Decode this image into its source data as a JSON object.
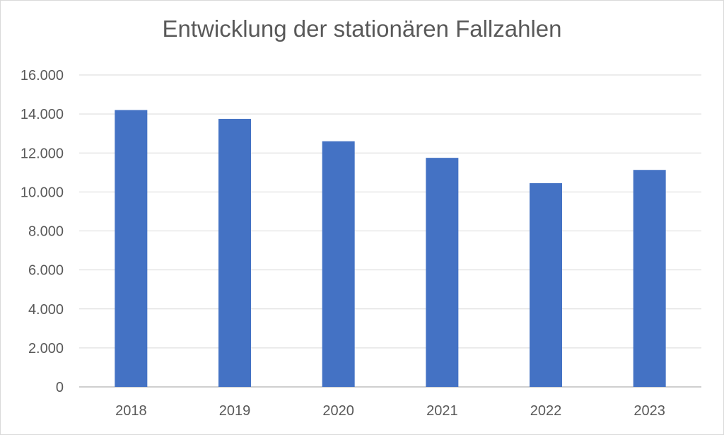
{
  "chart_data": {
    "type": "bar",
    "title": "Entwicklung der stationären Fallzahlen",
    "xlabel": "",
    "ylabel": "",
    "categories": [
      "2018",
      "2019",
      "2020",
      "2021",
      "2022",
      "2023"
    ],
    "series": [
      {
        "values": [
          14200,
          13750,
          12600,
          11750,
          10450,
          11130
        ]
      }
    ],
    "ylim": [
      0,
      16000
    ],
    "yticks": [
      0,
      2000,
      4000,
      6000,
      8000,
      10000,
      12000,
      14000,
      16000
    ],
    "ytick_labels": [
      "0",
      "2.000",
      "4.000",
      "6.000",
      "8.000",
      "10.000",
      "12.000",
      "14.000",
      "16.000"
    ],
    "grid": true,
    "legend": "none",
    "bar_color": "#4472c4",
    "grid_color": "#d9d9d9",
    "text_color": "#595959"
  }
}
